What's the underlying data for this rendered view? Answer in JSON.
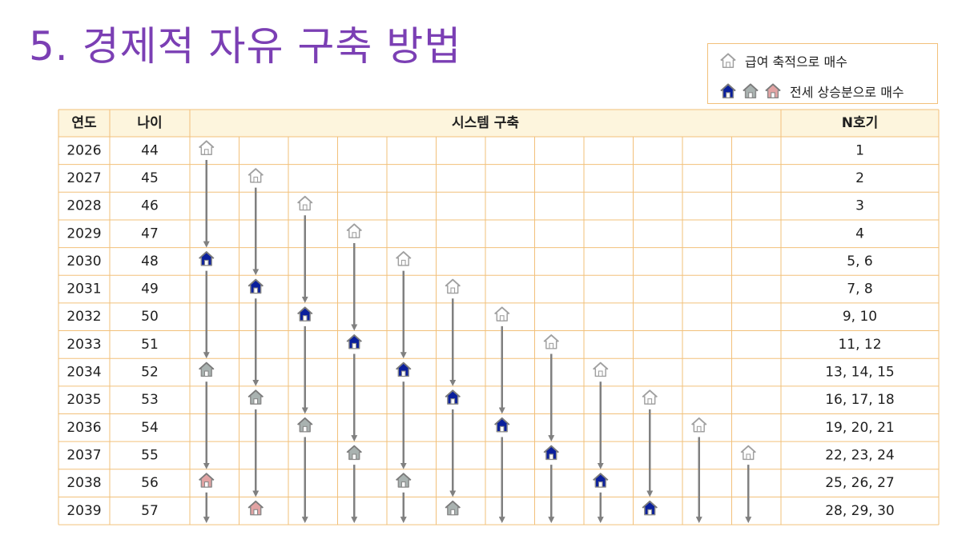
{
  "title": "5. 경제적 자유 구축 방법",
  "legend": {
    "item1": {
      "icons": [
        "house-outline-icon"
      ],
      "label": "급여 축적으로 매수"
    },
    "item2": {
      "icons": [
        "house-blue-icon",
        "house-gray-icon",
        "house-pink-icon"
      ],
      "label": "전세 상승분으로 매수"
    }
  },
  "table": {
    "headers": {
      "year": "연도",
      "age": "나이",
      "system": "시스템 구축",
      "count": "N호기"
    },
    "rows": [
      {
        "year": "2026",
        "age": "44",
        "count": "1"
      },
      {
        "year": "2027",
        "age": "45",
        "count": "2"
      },
      {
        "year": "2028",
        "age": "46",
        "count": "3"
      },
      {
        "year": "2029",
        "age": "47",
        "count": "4"
      },
      {
        "year": "2030",
        "age": "48",
        "count": "5, 6"
      },
      {
        "year": "2031",
        "age": "49",
        "count": "7, 8"
      },
      {
        "year": "2032",
        "age": "50",
        "count": "9, 10"
      },
      {
        "year": "2033",
        "age": "51",
        "count": "11, 12"
      },
      {
        "year": "2034",
        "age": "52",
        "count": "13, 14, 15"
      },
      {
        "year": "2035",
        "age": "53",
        "count": "16, 17, 18"
      },
      {
        "year": "2036",
        "age": "54",
        "count": "19, 20, 21"
      },
      {
        "year": "2037",
        "age": "55",
        "count": "22, 23, 24"
      },
      {
        "year": "2038",
        "age": "56",
        "count": "25, 26, 27"
      },
      {
        "year": "2039",
        "age": "57",
        "count": "28, 29, 30"
      }
    ],
    "system_columns": [
      {
        "houses": [
          {
            "year": "2026",
            "type": "outline"
          },
          {
            "year": "2030",
            "type": "blue"
          },
          {
            "year": "2034",
            "type": "gray"
          },
          {
            "year": "2038",
            "type": "pink"
          }
        ]
      },
      {
        "houses": [
          {
            "year": "2027",
            "type": "outline"
          },
          {
            "year": "2031",
            "type": "blue"
          },
          {
            "year": "2035",
            "type": "gray"
          },
          {
            "year": "2039",
            "type": "pink"
          }
        ]
      },
      {
        "houses": [
          {
            "year": "2028",
            "type": "outline"
          },
          {
            "year": "2032",
            "type": "blue"
          },
          {
            "year": "2036",
            "type": "gray"
          }
        ]
      },
      {
        "houses": [
          {
            "year": "2029",
            "type": "outline"
          },
          {
            "year": "2033",
            "type": "blue"
          },
          {
            "year": "2037",
            "type": "gray"
          }
        ]
      },
      {
        "houses": [
          {
            "year": "2030",
            "type": "outline"
          },
          {
            "year": "2034",
            "type": "blue"
          },
          {
            "year": "2038",
            "type": "gray"
          }
        ]
      },
      {
        "houses": [
          {
            "year": "2031",
            "type": "outline"
          },
          {
            "year": "2035",
            "type": "blue"
          },
          {
            "year": "2039",
            "type": "gray"
          }
        ]
      },
      {
        "houses": [
          {
            "year": "2032",
            "type": "outline"
          },
          {
            "year": "2036",
            "type": "blue"
          }
        ]
      },
      {
        "houses": [
          {
            "year": "2033",
            "type": "outline"
          },
          {
            "year": "2037",
            "type": "blue"
          }
        ]
      },
      {
        "houses": [
          {
            "year": "2034",
            "type": "outline"
          },
          {
            "year": "2038",
            "type": "blue"
          }
        ]
      },
      {
        "houses": [
          {
            "year": "2035",
            "type": "outline"
          },
          {
            "year": "2039",
            "type": "blue"
          }
        ]
      },
      {
        "houses": [
          {
            "year": "2036",
            "type": "outline"
          }
        ]
      },
      {
        "houses": [
          {
            "year": "2037",
            "type": "outline"
          }
        ]
      }
    ]
  },
  "colors": {
    "title": "#7b3fb4",
    "border": "#f2c07a",
    "header_bg": "#fdf5dd",
    "arrow": "#808080",
    "house_blue": "#0a1f9c",
    "house_gray": "#a9b2b0",
    "house_pink": "#e2a3a3",
    "house_outline": "#a0a0a0"
  }
}
